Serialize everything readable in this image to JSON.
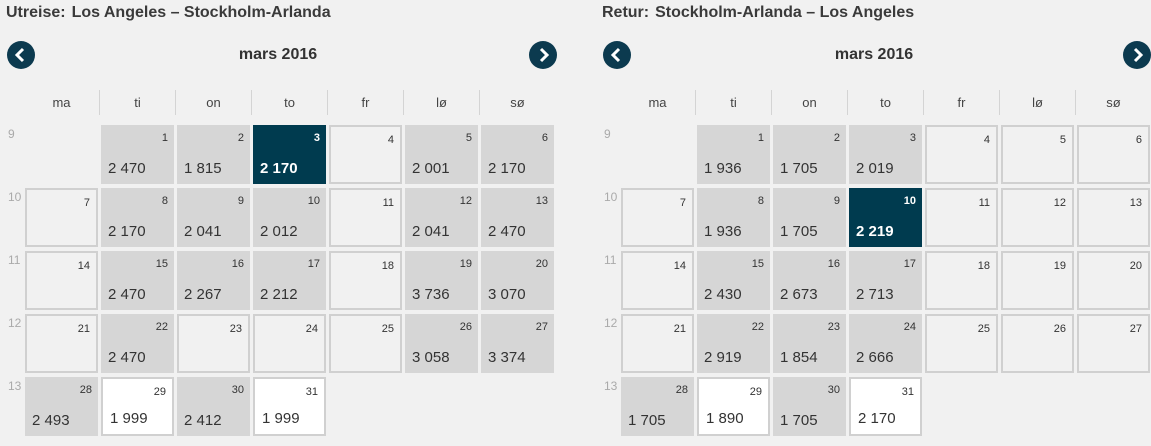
{
  "outbound": {
    "label": "Utreise:",
    "route": "Los Angeles – Stockholm-Arlanda",
    "month": "mars 2016",
    "weekdays": [
      "ma",
      "ti",
      "on",
      "to",
      "fr",
      "lø",
      "sø"
    ],
    "weeks": [
      {
        "number": 9,
        "days": [
          null,
          {
            "day": 1,
            "price": "2 470",
            "color": "#d6d6d6"
          },
          {
            "day": 2,
            "price": "1 815",
            "color": "#d6d6d6"
          },
          {
            "day": 3,
            "price": "2 170",
            "color": "#003b4f",
            "text_color": "#ffffff"
          },
          {
            "day": 4,
            "border": true
          },
          {
            "day": 5,
            "price": "2 001",
            "color": "#d6d6d6"
          },
          {
            "day": 6,
            "price": "2 170",
            "color": "#d6d6d6"
          }
        ]
      },
      {
        "number": 10,
        "days": [
          {
            "day": 7,
            "border": true
          },
          {
            "day": 8,
            "price": "2 170",
            "color": "#d6d6d6"
          },
          {
            "day": 9,
            "price": "2 041",
            "color": "#d6d6d6"
          },
          {
            "day": 10,
            "price": "2 012",
            "color": "#d6d6d6"
          },
          {
            "day": 11,
            "border": true
          },
          {
            "day": 12,
            "price": "2 041",
            "color": "#d6d6d6"
          },
          {
            "day": 13,
            "price": "2 470",
            "color": "#d6d6d6"
          }
        ]
      },
      {
        "number": 11,
        "days": [
          {
            "day": 14,
            "border": true
          },
          {
            "day": 15,
            "price": "2 470",
            "color": "#d6d6d6"
          },
          {
            "day": 16,
            "price": "2 267",
            "color": "#d6d6d6"
          },
          {
            "day": 17,
            "price": "2 212",
            "color": "#d6d6d6"
          },
          {
            "day": 18,
            "border": true
          },
          {
            "day": 19,
            "price": "3 736",
            "color": "#d6d6d6"
          },
          {
            "day": 20,
            "price": "3 070",
            "color": "#d6d6d6"
          }
        ]
      },
      {
        "number": 12,
        "days": [
          {
            "day": 21,
            "border": true
          },
          {
            "day": 22,
            "price": "2 470",
            "color": "#d6d6d6"
          },
          {
            "day": 23,
            "border": true
          },
          {
            "day": 24,
            "border": true
          },
          {
            "day": 25,
            "border": true
          },
          {
            "day": 26,
            "price": "3 058",
            "color": "#d6d6d6"
          },
          {
            "day": 27,
            "price": "3 374",
            "color": "#d6d6d6"
          }
        ]
      },
      {
        "number": 13,
        "days": [
          {
            "day": 28,
            "price": "2 493",
            "color": "#d6d6d6"
          },
          {
            "day": 29,
            "price": "1 999",
            "color": "#ffffff",
            "border": true
          },
          {
            "day": 30,
            "price": "2 412",
            "color": "#d6d6d6"
          },
          {
            "day": 31,
            "price": "1 999",
            "color": "#ffffff",
            "border": true
          },
          null,
          null,
          null
        ]
      }
    ]
  },
  "return": {
    "label": "Retur:",
    "route": "Stockholm-Arlanda – Los Angeles",
    "month": "mars 2016",
    "weekdays": [
      "ma",
      "ti",
      "on",
      "to",
      "fr",
      "lø",
      "sø"
    ],
    "weeks": [
      {
        "number": 9,
        "days": [
          null,
          {
            "day": 1,
            "price": "1 936",
            "color": "#d6d6d6"
          },
          {
            "day": 2,
            "price": "1 705",
            "color": "#d6d6d6"
          },
          {
            "day": 3,
            "price": "2 019",
            "color": "#d6d6d6"
          },
          {
            "day": 4,
            "border": true
          },
          {
            "day": 5,
            "border": true
          },
          {
            "day": 6,
            "border": true
          }
        ]
      },
      {
        "number": 10,
        "days": [
          {
            "day": 7,
            "border": true
          },
          {
            "day": 8,
            "price": "1 936",
            "color": "#d6d6d6"
          },
          {
            "day": 9,
            "price": "1 705",
            "color": "#d6d6d6"
          },
          {
            "day": 10,
            "price": "2 219",
            "color": "#003b4f",
            "text_color": "#ffffff"
          },
          {
            "day": 11,
            "border": true
          },
          {
            "day": 12,
            "border": true
          },
          {
            "day": 13,
            "border": true
          }
        ]
      },
      {
        "number": 11,
        "days": [
          {
            "day": 14,
            "border": true
          },
          {
            "day": 15,
            "price": "2 430",
            "color": "#d6d6d6"
          },
          {
            "day": 16,
            "price": "2 673",
            "color": "#d6d6d6"
          },
          {
            "day": 17,
            "price": "2 713",
            "color": "#d6d6d6"
          },
          {
            "day": 18,
            "border": true
          },
          {
            "day": 19,
            "border": true
          },
          {
            "day": 20,
            "border": true
          }
        ]
      },
      {
        "number": 12,
        "days": [
          {
            "day": 21,
            "border": true
          },
          {
            "day": 22,
            "price": "2 919",
            "color": "#d6d6d6"
          },
          {
            "day": 23,
            "price": "1 854",
            "color": "#d6d6d6"
          },
          {
            "day": 24,
            "price": "2 666",
            "color": "#d6d6d6"
          },
          {
            "day": 25,
            "border": true
          },
          {
            "day": 26,
            "border": true
          },
          {
            "day": 27,
            "border": true
          }
        ]
      },
      {
        "number": 13,
        "days": [
          {
            "day": 28,
            "price": "1 705",
            "color": "#d6d6d6"
          },
          {
            "day": 29,
            "price": "1 890",
            "color": "#ffffff",
            "border": true
          },
          {
            "day": 30,
            "price": "1 705",
            "color": "#d6d6d6"
          },
          {
            "day": 31,
            "price": "2 170",
            "color": "#ffffff",
            "border": true
          },
          null,
          null,
          null
        ]
      }
    ]
  }
}
